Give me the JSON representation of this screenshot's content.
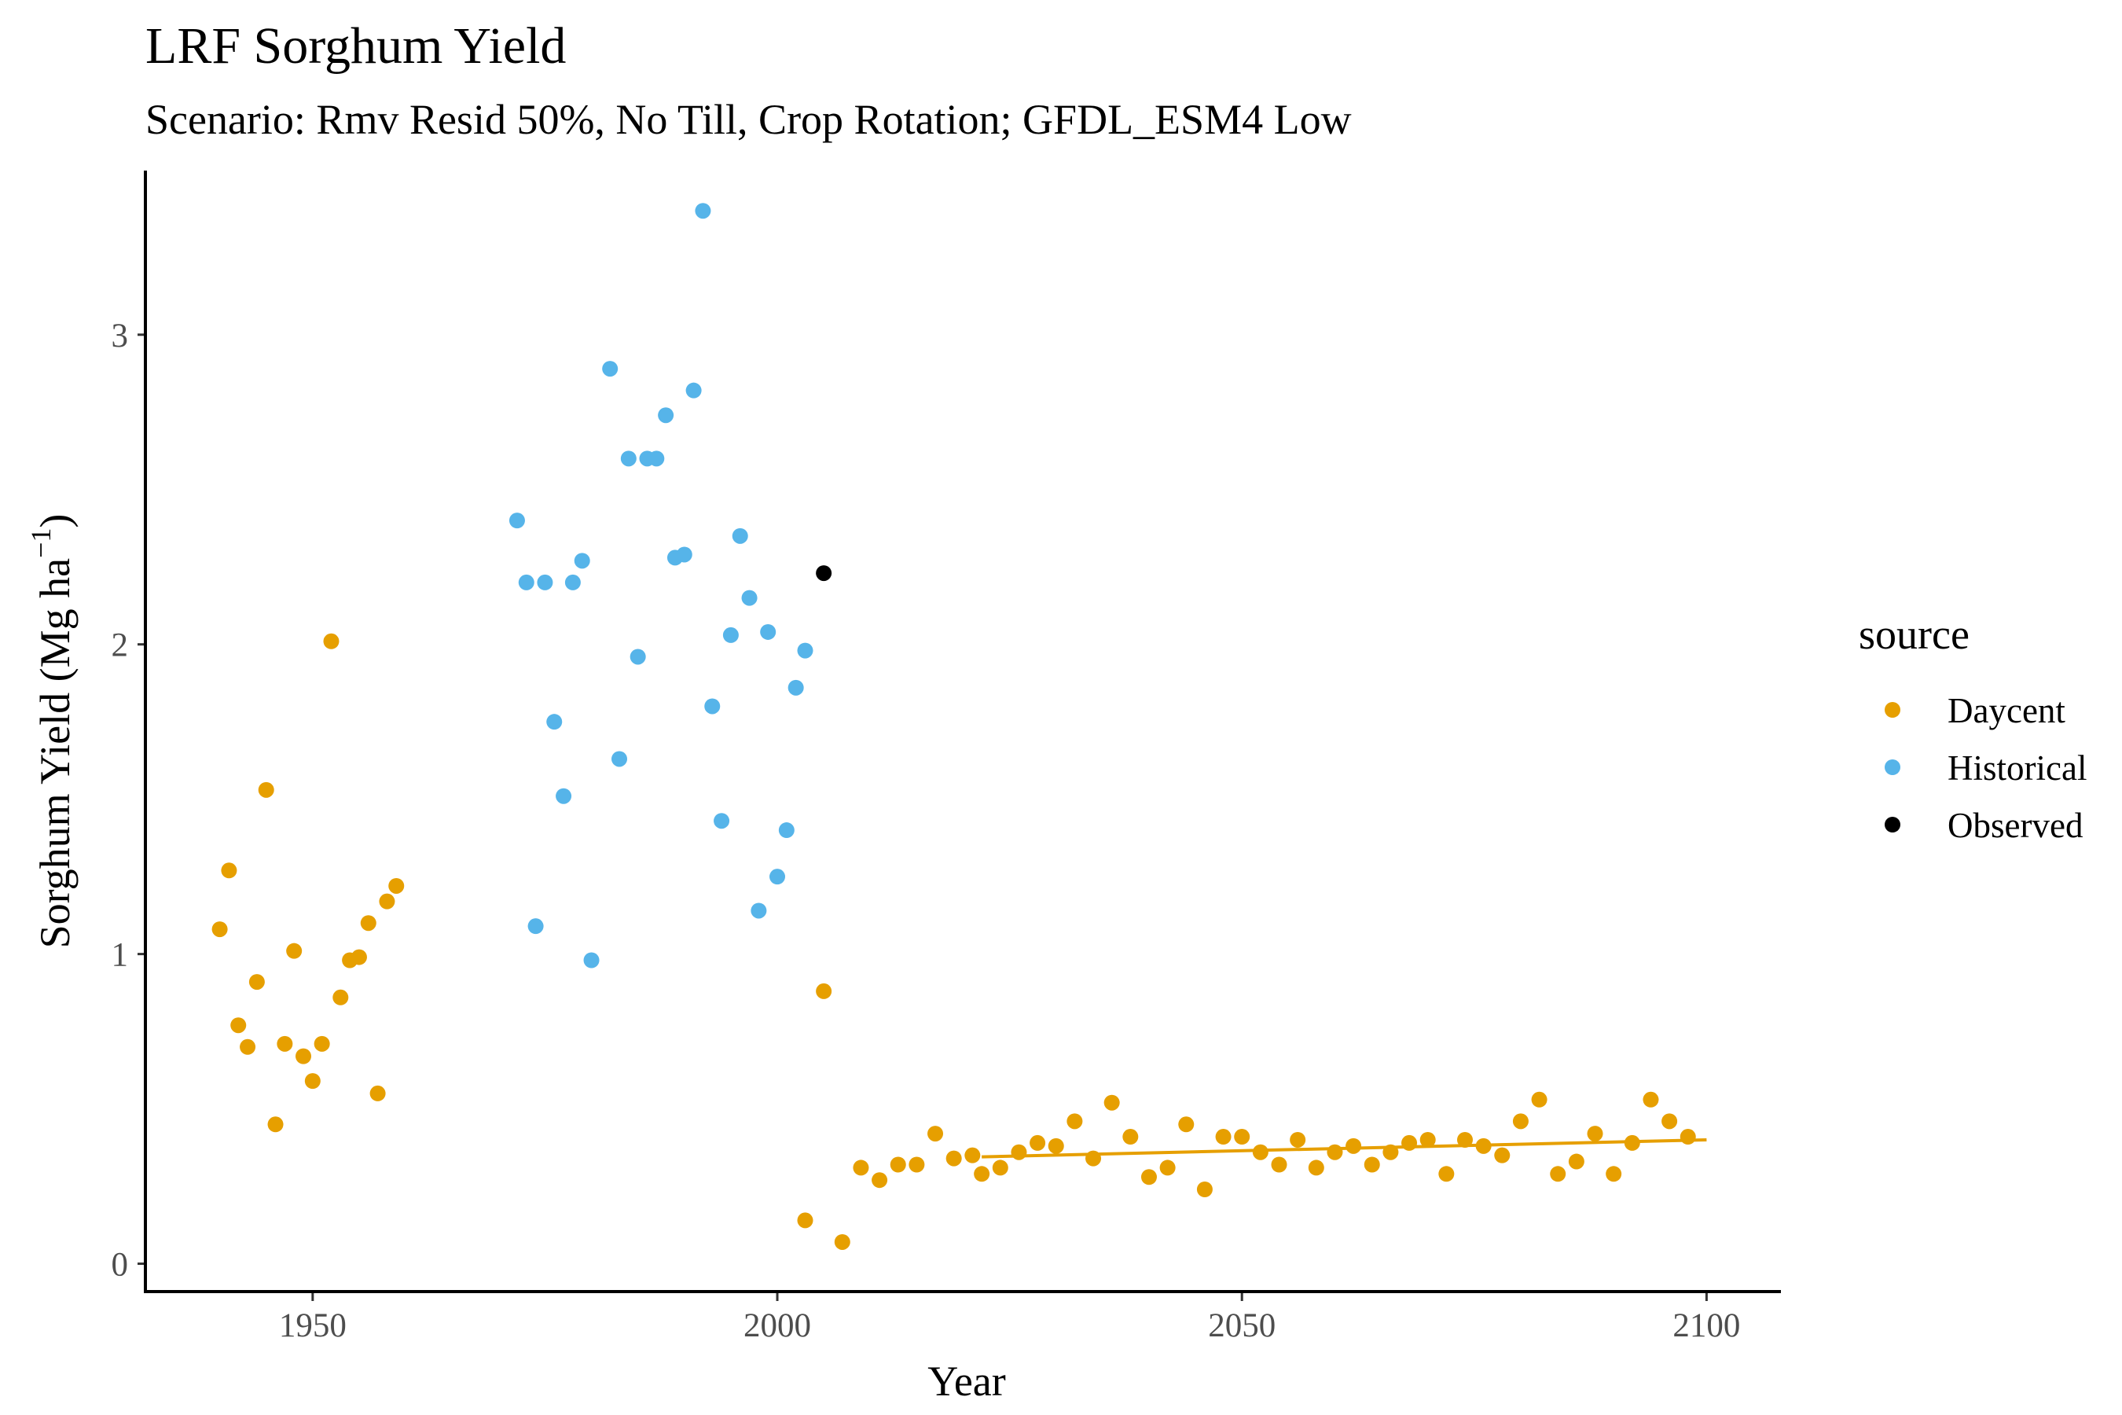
{
  "chart_data": {
    "type": "scatter",
    "title": "LRF Sorghum Yield",
    "subtitle": "Scenario: Rmv Resid 50%, No Till, Crop Rotation; GFDL_ESM4 Low",
    "xlabel": "Year",
    "ylabel_main": "Sorghum Yield (Mg ha",
    "ylabel_sup": "−1",
    "ylabel_close": ")",
    "xlim": [
      1932,
      2108
    ],
    "ylim": [
      -0.09,
      3.53
    ],
    "x_ticks": [
      1950,
      2000,
      2050,
      2100
    ],
    "y_ticks": [
      0,
      1,
      2,
      3
    ],
    "grid": false,
    "legend": {
      "title": "source",
      "position": "right",
      "entries": [
        {
          "label": "Daycent",
          "color": "#E69F00"
        },
        {
          "label": "Historical",
          "color": "#56B4E9"
        },
        {
          "label": "Observed",
          "color": "#000000"
        }
      ]
    },
    "series": [
      {
        "name": "Daycent",
        "color": "#E69F00",
        "points": [
          [
            1940,
            1.08
          ],
          [
            1941,
            1.27
          ],
          [
            1942,
            0.77
          ],
          [
            1943,
            0.7
          ],
          [
            1944,
            0.91
          ],
          [
            1945,
            1.53
          ],
          [
            1946,
            0.45
          ],
          [
            1947,
            0.71
          ],
          [
            1948,
            1.01
          ],
          [
            1949,
            0.67
          ],
          [
            1950,
            0.59
          ],
          [
            1951,
            0.71
          ],
          [
            1952,
            2.01
          ],
          [
            1953,
            0.86
          ],
          [
            1954,
            0.98
          ],
          [
            1955,
            0.99
          ],
          [
            1956,
            1.1
          ],
          [
            1957,
            0.55
          ],
          [
            1958,
            1.17
          ],
          [
            1959,
            1.22
          ],
          [
            2003,
            0.14
          ],
          [
            2005,
            0.88
          ],
          [
            2007,
            0.07
          ],
          [
            2009,
            0.31
          ],
          [
            2011,
            0.27
          ],
          [
            2013,
            0.32
          ],
          [
            2015,
            0.32
          ],
          [
            2017,
            0.42
          ],
          [
            2019,
            0.34
          ],
          [
            2021,
            0.35
          ],
          [
            2022,
            0.29
          ],
          [
            2024,
            0.31
          ],
          [
            2026,
            0.36
          ],
          [
            2028,
            0.39
          ],
          [
            2030,
            0.38
          ],
          [
            2032,
            0.46
          ],
          [
            2034,
            0.34
          ],
          [
            2036,
            0.52
          ],
          [
            2038,
            0.41
          ],
          [
            2040,
            0.28
          ],
          [
            2042,
            0.31
          ],
          [
            2044,
            0.45
          ],
          [
            2046,
            0.24
          ],
          [
            2048,
            0.41
          ],
          [
            2050,
            0.41
          ],
          [
            2052,
            0.36
          ],
          [
            2054,
            0.32
          ],
          [
            2056,
            0.4
          ],
          [
            2058,
            0.31
          ],
          [
            2060,
            0.36
          ],
          [
            2062,
            0.38
          ],
          [
            2064,
            0.32
          ],
          [
            2066,
            0.36
          ],
          [
            2068,
            0.39
          ],
          [
            2070,
            0.4
          ],
          [
            2072,
            0.29
          ],
          [
            2074,
            0.4
          ],
          [
            2076,
            0.38
          ],
          [
            2078,
            0.35
          ],
          [
            2080,
            0.46
          ],
          [
            2082,
            0.53
          ],
          [
            2084,
            0.29
          ],
          [
            2086,
            0.33
          ],
          [
            2088,
            0.42
          ],
          [
            2090,
            0.29
          ],
          [
            2092,
            0.39
          ],
          [
            2094,
            0.53
          ],
          [
            2096,
            0.46
          ],
          [
            2098,
            0.41
          ]
        ]
      },
      {
        "name": "Historical",
        "color": "#56B4E9",
        "points": [
          [
            1972,
            2.4
          ],
          [
            1973,
            2.2
          ],
          [
            1974,
            1.09
          ],
          [
            1975,
            2.2
          ],
          [
            1976,
            1.75
          ],
          [
            1977,
            1.51
          ],
          [
            1978,
            2.2
          ],
          [
            1979,
            2.27
          ],
          [
            1980,
            0.98
          ],
          [
            1982,
            2.89
          ],
          [
            1983,
            1.63
          ],
          [
            1984,
            2.6
          ],
          [
            1985,
            1.96
          ],
          [
            1986,
            2.6
          ],
          [
            1987,
            2.6
          ],
          [
            1988,
            2.74
          ],
          [
            1989,
            2.28
          ],
          [
            1990,
            2.29
          ],
          [
            1991,
            2.82
          ],
          [
            1992,
            3.4
          ],
          [
            1993,
            1.8
          ],
          [
            1994,
            1.43
          ],
          [
            1995,
            2.03
          ],
          [
            1996,
            2.35
          ],
          [
            1997,
            2.15
          ],
          [
            1998,
            1.14
          ],
          [
            1999,
            2.04
          ],
          [
            2000,
            1.25
          ],
          [
            2001,
            1.4
          ],
          [
            2002,
            1.86
          ],
          [
            2003,
            1.98
          ]
        ]
      },
      {
        "name": "Observed",
        "color": "#000000",
        "points": [
          [
            2005,
            2.23
          ]
        ]
      }
    ],
    "trend_line": {
      "series": "Daycent",
      "color": "#E69F00",
      "from": [
        2022,
        0.345
      ],
      "to": [
        2100,
        0.4
      ]
    }
  }
}
